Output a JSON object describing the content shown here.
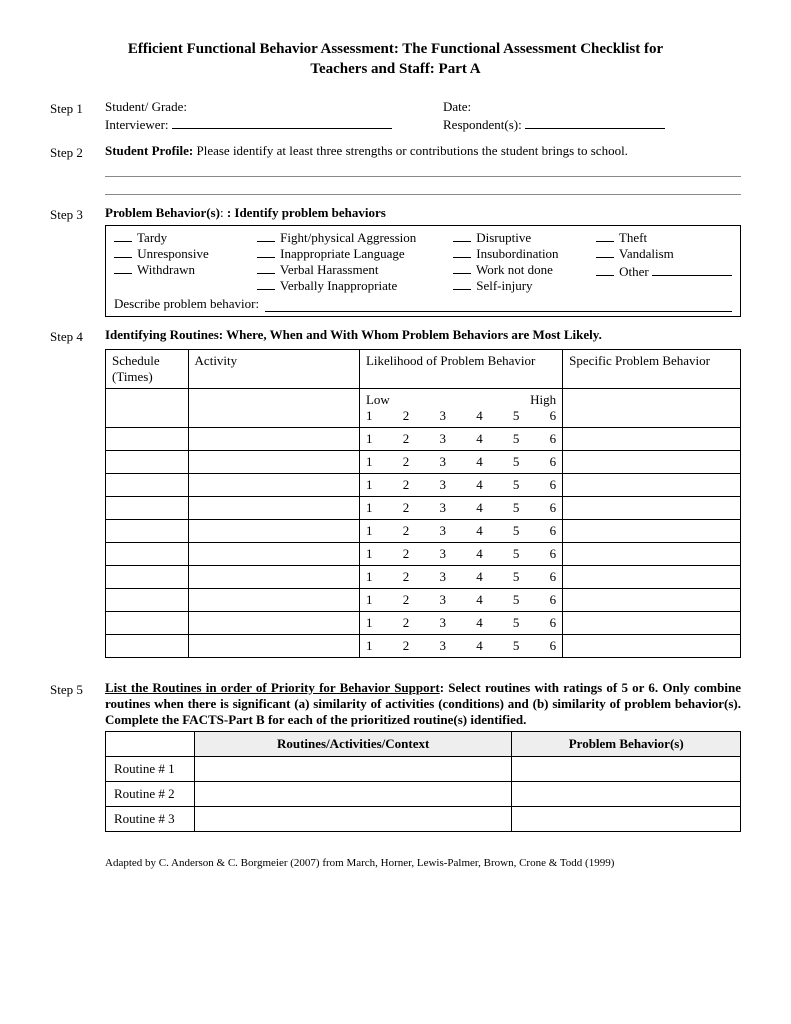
{
  "title_line1": "Efficient Functional Behavior Assessment: The Functional Assessment Checklist for",
  "title_line2": "Teachers and Staff: Part A",
  "step1": {
    "label": "Step 1",
    "student_grade": "Student/ Grade:",
    "date": "Date:",
    "interviewer": "Interviewer:",
    "respondents": "Respondent(s):"
  },
  "step2": {
    "label": "Step 2",
    "profile_bold": "Student Profile:",
    "profile_text": " Please identify at least three strengths or contributions the student brings to school."
  },
  "step3": {
    "label": "Step 3",
    "heading_a": "Problem Behavior(s)",
    "heading_b": ":  Identify problem behaviors",
    "col1": [
      "Tardy",
      "Unresponsive",
      "Withdrawn"
    ],
    "col2": [
      "Fight/physical Aggression",
      "Inappropriate Language",
      "Verbal Harassment",
      "Verbally Inappropriate"
    ],
    "col3": [
      "Disruptive",
      "Insubordination",
      "Work not done",
      "Self-injury"
    ],
    "col4": [
      "Theft",
      "Vandalism",
      "Other"
    ],
    "describe": "Describe problem behavior:"
  },
  "step4": {
    "label": "Step 4",
    "heading": "Identifying Routines: Where, When and With Whom Problem Behaviors are Most Likely.",
    "headers": {
      "schedule": "Schedule (Times)",
      "activity": "Activity",
      "likelihood": "Likelihood of Problem Behavior",
      "specific": "Specific Problem Behavior"
    },
    "low": "Low",
    "high": "High",
    "scale": [
      "1",
      "2",
      "3",
      "4",
      "5",
      "6"
    ],
    "row_count": 11
  },
  "step5": {
    "label": "Step 5",
    "heading_bold": "List the Routines in order of Priority for Behavior Support",
    "heading_rest": ": Select routines with ratings of 5 or 6.  Only combine routines when there is significant (a) similarity of activities (conditions) and (b) similarity of problem behavior(s).  Complete the FACTS-Part B for each of the prioritized routine(s) identified.",
    "th1": "Routines/Activities/Context",
    "th2": "Problem Behavior(s)",
    "rows": [
      "Routine # 1",
      "Routine # 2",
      "Routine # 3"
    ]
  },
  "footer": "Adapted by C. Anderson & C. Borgmeier (2007) from March, Horner, Lewis-Palmer, Brown, Crone & Todd (1999)"
}
